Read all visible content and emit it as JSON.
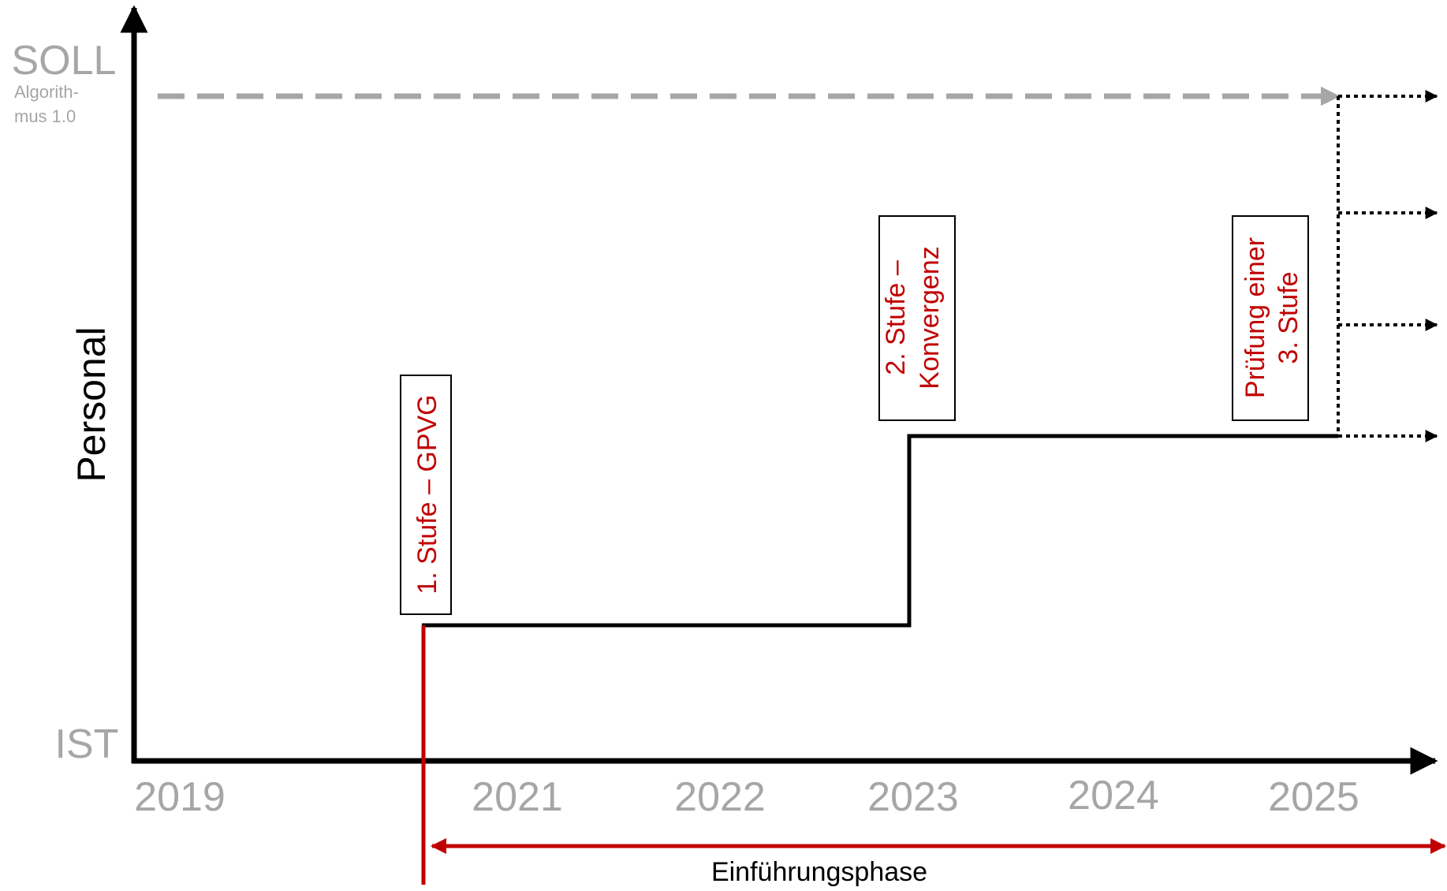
{
  "y_axis": {
    "title": "Personal",
    "top_label": "SOLL",
    "top_sublabel_line1": "Algorith-",
    "top_sublabel_line2": "mus 1.0",
    "bottom_label": "IST"
  },
  "x_axis": {
    "years": [
      "2019",
      "2021",
      "2022",
      "2023",
      "2024",
      "2025"
    ]
  },
  "stages": [
    {
      "line1": "1. Stufe – GPVG",
      "line2": ""
    },
    {
      "line1": "2. Stufe –",
      "line2": "Konvergenz"
    },
    {
      "line1": "Prüfung einer",
      "line2": "3. Stufe"
    }
  ],
  "phase": {
    "label": "Einführungsphase"
  },
  "colors": {
    "axis": "#000000",
    "muted_label": "#a6a6a6",
    "target_dashed": "#a6a6a6",
    "accent_red": "#c00000",
    "step_line": "#000000"
  }
}
